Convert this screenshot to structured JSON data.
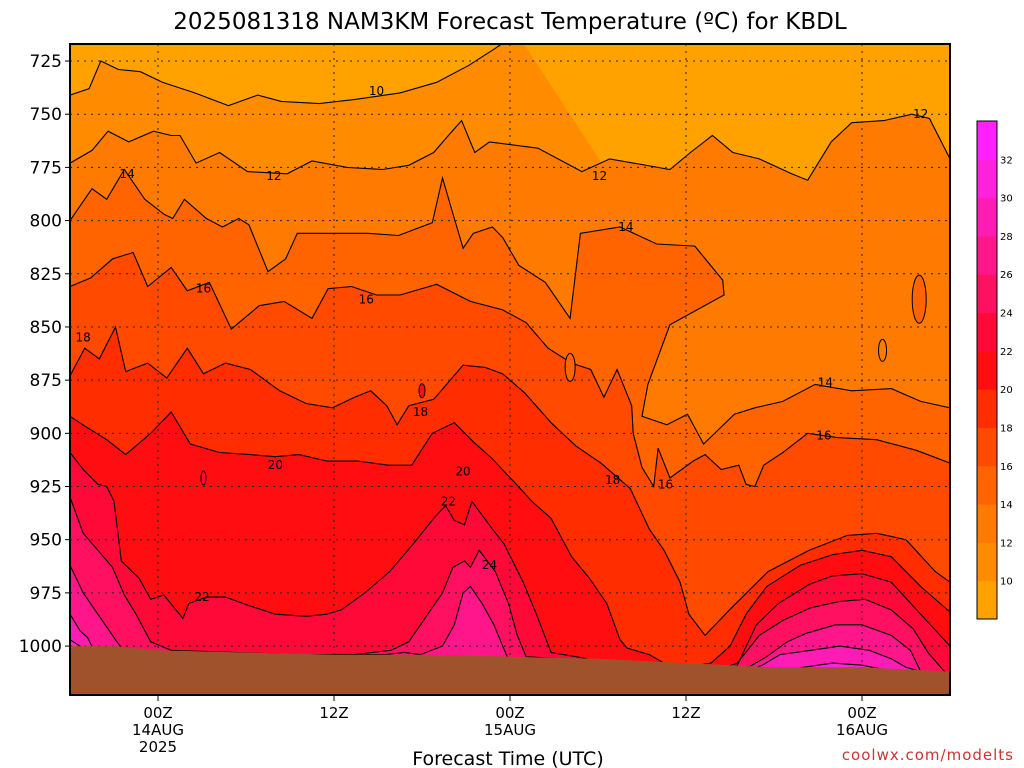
{
  "chart_data": {
    "type": "heatmap",
    "title": "2025081318 NAM3KM Forecast Temperature (ºC) for KBDL",
    "xlabel": "Forecast Time (UTC)",
    "ylabel": "",
    "credit": "coolwx.com/modelts",
    "y_axis": {
      "scale": "pressure (hPa), increasing downward",
      "range": [
        717,
        1023
      ],
      "ticks": [
        725,
        750,
        775,
        800,
        825,
        850,
        875,
        900,
        925,
        950,
        975,
        1000
      ]
    },
    "x_axis": {
      "range_hours_from_init": [
        0,
        60
      ],
      "ticks": [
        {
          "hour": 6,
          "lines": [
            "00Z",
            "14AUG",
            "2025"
          ]
        },
        {
          "hour": 18,
          "lines": [
            "12Z"
          ]
        },
        {
          "hour": 30,
          "lines": [
            "00Z",
            "15AUG"
          ]
        },
        {
          "hour": 42,
          "lines": [
            "12Z"
          ]
        },
        {
          "hour": 54,
          "lines": [
            "00Z",
            "16AUG"
          ]
        }
      ]
    },
    "grid": true,
    "colorbar": {
      "placement": "right",
      "levels": [
        8,
        10,
        12,
        14,
        16,
        18,
        20,
        22,
        24,
        26,
        28,
        30,
        32,
        34
      ],
      "colors": [
        "#ffa200",
        "#ff8c00",
        "#ff7a00",
        "#ff6400",
        "#ff4a00",
        "#ff2d00",
        "#ff0d10",
        "#ff0a38",
        "#ff1060",
        "#ff168a",
        "#ff1cb4",
        "#ff22dc",
        "#ff20ff"
      ],
      "tick_labels": [
        10,
        12,
        14,
        16,
        18,
        20,
        22,
        24,
        26,
        28,
        30,
        32
      ]
    },
    "contour_labels": [
      {
        "text": "10",
        "hour": 20.9,
        "p": 739
      },
      {
        "text": "12",
        "hour": 13.9,
        "p": 779
      },
      {
        "text": "12",
        "hour": 36.1,
        "p": 779
      },
      {
        "text": "12",
        "hour": 58.0,
        "p": 750
      },
      {
        "text": "14",
        "hour": 3.9,
        "p": 778
      },
      {
        "text": "14",
        "hour": 37.9,
        "p": 803
      },
      {
        "text": "14",
        "hour": 51.5,
        "p": 876
      },
      {
        "text": "16",
        "hour": 9.1,
        "p": 832
      },
      {
        "text": "16",
        "hour": 20.2,
        "p": 837
      },
      {
        "text": "16",
        "hour": 51.4,
        "p": 901
      },
      {
        "text": "16",
        "hour": 40.6,
        "p": 924
      },
      {
        "text": "18",
        "hour": 0.9,
        "p": 855
      },
      {
        "text": "18",
        "hour": 23.9,
        "p": 890
      },
      {
        "text": "18",
        "hour": 37.0,
        "p": 922
      },
      {
        "text": "20",
        "hour": 14.0,
        "p": 915
      },
      {
        "text": "20",
        "hour": 26.8,
        "p": 918
      },
      {
        "text": "22",
        "hour": 25.8,
        "p": 932
      },
      {
        "text": "22",
        "hour": 9.0,
        "p": 977
      },
      {
        "text": "24",
        "hour": 28.6,
        "p": 962
      }
    ],
    "surface_ground_color": "#a0522d",
    "surface_pressure_hpa": [
      {
        "hour": 0.0,
        "p": 1000
      },
      {
        "hour": 3.0,
        "p": 1000
      },
      {
        "hour": 6.0,
        "p": 1002
      },
      {
        "hour": 12.0,
        "p": 1003
      },
      {
        "hour": 18.0,
        "p": 1004
      },
      {
        "hour": 24.0,
        "p": 1004
      },
      {
        "hour": 30.0,
        "p": 1005
      },
      {
        "hour": 36.0,
        "p": 1006
      },
      {
        "hour": 42.0,
        "p": 1008
      },
      {
        "hour": 48.0,
        "p": 1010
      },
      {
        "hour": 54.0,
        "p": 1010
      },
      {
        "hour": 60.0,
        "p": 1012
      }
    ]
  }
}
